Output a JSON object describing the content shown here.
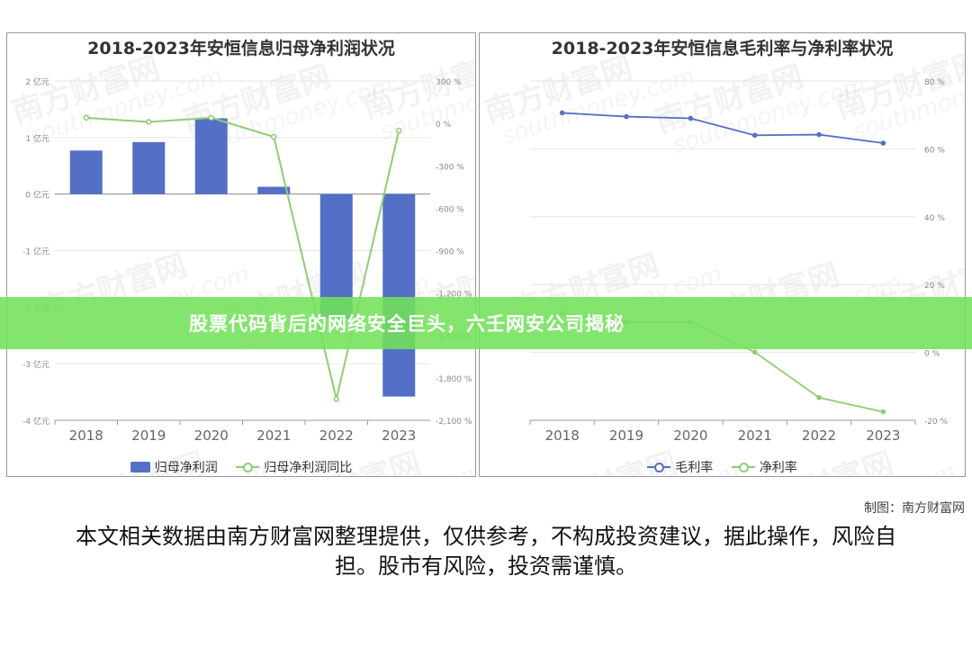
{
  "chart_data": [
    {
      "type": "bar",
      "title": "2018-2023年安恒信息归母净利润状况",
      "categories": [
        "2018",
        "2019",
        "2020",
        "2021",
        "2022",
        "2023"
      ],
      "y_left_ticks": [
        "2 亿元",
        "1 亿元",
        "0 亿元",
        "-1 亿元",
        "-2 亿元",
        "-3 亿元",
        "-4 亿元"
      ],
      "y_left_range": [
        -4,
        2
      ],
      "y_right_ticks": [
        "300 %",
        "0 %",
        "-300 %",
        "-600 %",
        "-900 %",
        "-1,200 %",
        "-1,500 %",
        "-1,800 %",
        "-2,100 %"
      ],
      "y_right_range": [
        -2100,
        300
      ],
      "series": [
        {
          "name": "归母净利润",
          "type": "bar",
          "axis": "left",
          "unit": "亿元",
          "values": [
            0.77,
            0.92,
            1.34,
            0.13,
            -2.2,
            -3.58
          ]
        },
        {
          "name": "归母净利润同比",
          "type": "line",
          "axis": "right",
          "unit": "%",
          "values": [
            40,
            10,
            40,
            -95,
            -1950,
            -50
          ]
        }
      ],
      "legend_position": "bottom",
      "grid": true
    },
    {
      "type": "line",
      "title": "2018-2023年安恒信息毛利率与净利率状况",
      "categories": [
        "2018",
        "2019",
        "2020",
        "2021",
        "2022",
        "2023"
      ],
      "y_right_ticks": [
        "80 %",
        "60 %",
        "40 %",
        "20 %",
        "0 %",
        "-20 %"
      ],
      "y_range": [
        -20,
        80
      ],
      "series": [
        {
          "name": "毛利率",
          "unit": "%",
          "values": [
            70.6,
            69.5,
            69.0,
            64.0,
            64.2,
            61.7
          ]
        },
        {
          "name": "净利率",
          "unit": "%",
          "values": [
            11.5,
            9.0,
            9.0,
            0.1,
            -13.3,
            -17.5
          ]
        }
      ],
      "legend_position": "bottom",
      "grid": true
    }
  ],
  "colors": {
    "bar": "#5470c6",
    "gross": "#5470c6",
    "net": "#91cc75",
    "banner": "#73e15a"
  },
  "banner": {
    "text": "股票代码背后的网络安全巨头，六壬网安公司揭秘"
  },
  "credit": "制图：南方财富网",
  "disclaimer": "本文相关数据由南方财富网整理提供，仅供参考，不构成投资建议，据此操作，风险自担。股市有风险，投资需谨慎。",
  "watermark": {
    "cn": "南方财富网",
    "en": "southmoney.com"
  }
}
